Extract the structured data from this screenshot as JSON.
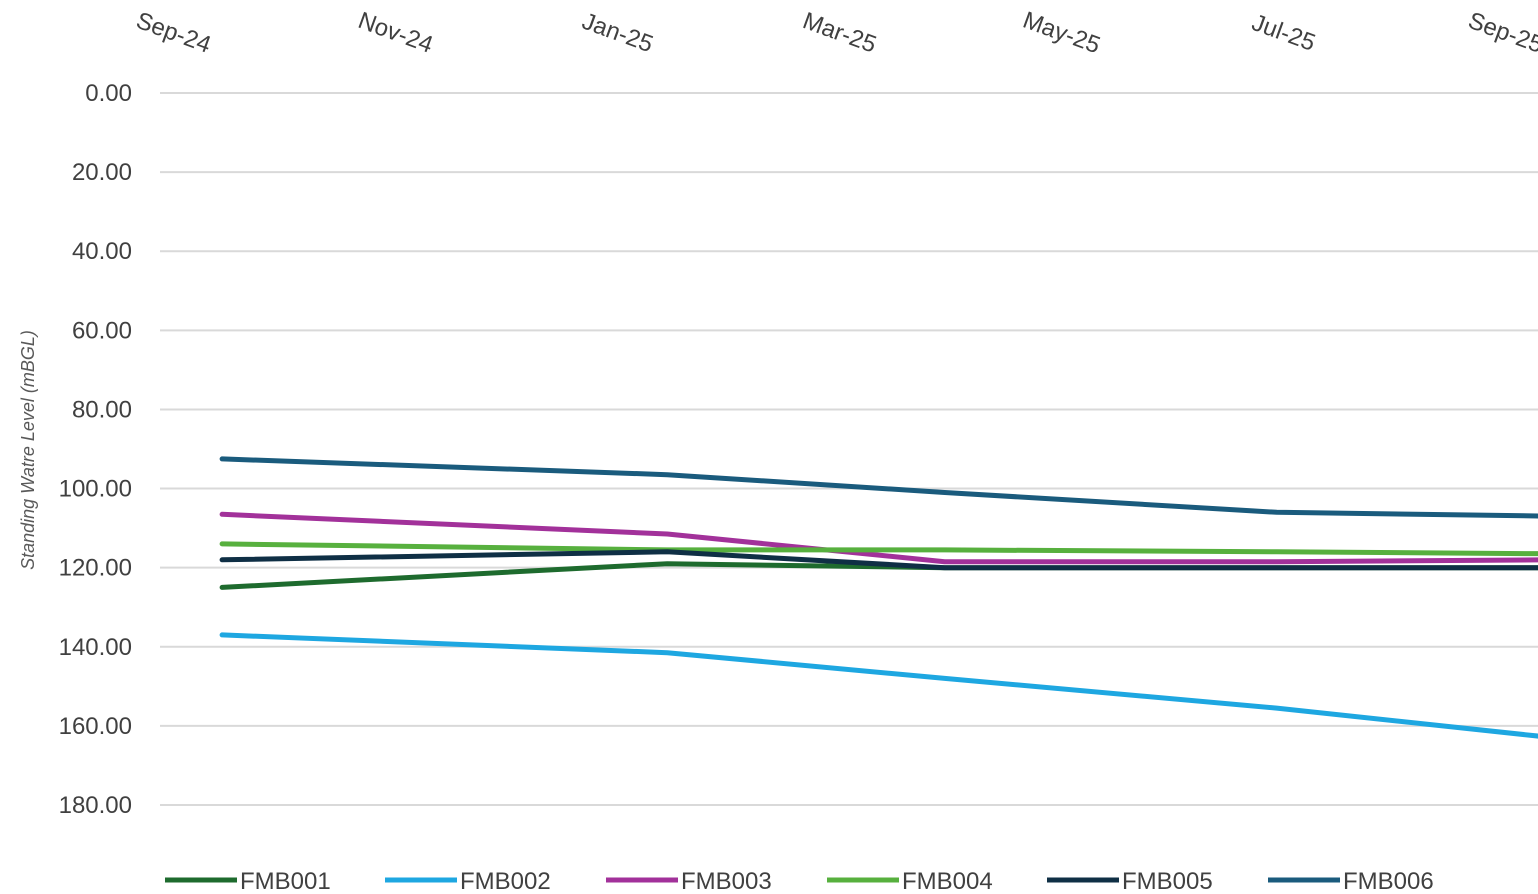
{
  "chart_data": {
    "type": "line",
    "title": "",
    "ylabel": "Standing Watre Level (mBGL)",
    "xlabel": "",
    "y_axis_reversed": true,
    "x_axis_position": "top",
    "ylim": [
      0,
      180
    ],
    "y_tick_step": 20,
    "y_tick_labels": [
      "0.00",
      "20.00",
      "40.00",
      "60.00",
      "80.00",
      "100.00",
      "120.00",
      "140.00",
      "160.00",
      "180.00"
    ],
    "x_tick_labels": [
      "Sep-24",
      "Nov-24",
      "Jan-25",
      "Mar-25",
      "May-25",
      "Jul-25",
      "Sep-25"
    ],
    "x": [
      "2024-09-15",
      "2025-01-15",
      "2025-04-01",
      "2025-07-01",
      "2025-09-15"
    ],
    "grid": true,
    "legend_position": "bottom",
    "series": [
      {
        "name": "FMB001",
        "color": "#1e6b2e",
        "values": [
          125.0,
          119.0,
          120.0,
          120.0,
          120.0
        ]
      },
      {
        "name": "FMB002",
        "color": "#1ea7e1",
        "values": [
          137.0,
          141.5,
          148.0,
          155.5,
          163.0
        ]
      },
      {
        "name": "FMB003",
        "color": "#a2319a",
        "values": [
          106.5,
          111.5,
          118.5,
          118.5,
          118.0
        ]
      },
      {
        "name": "FMB004",
        "color": "#57b03e",
        "values": [
          114.0,
          115.5,
          115.5,
          116.0,
          116.5
        ]
      },
      {
        "name": "FMB005",
        "color": "#0f2f45",
        "values": [
          118.0,
          116.0,
          120.0,
          120.0,
          120.0
        ]
      },
      {
        "name": "FMB006",
        "color": "#1a5b7d",
        "values": [
          92.5,
          96.5,
          101.0,
          106.0,
          107.0
        ]
      }
    ]
  }
}
